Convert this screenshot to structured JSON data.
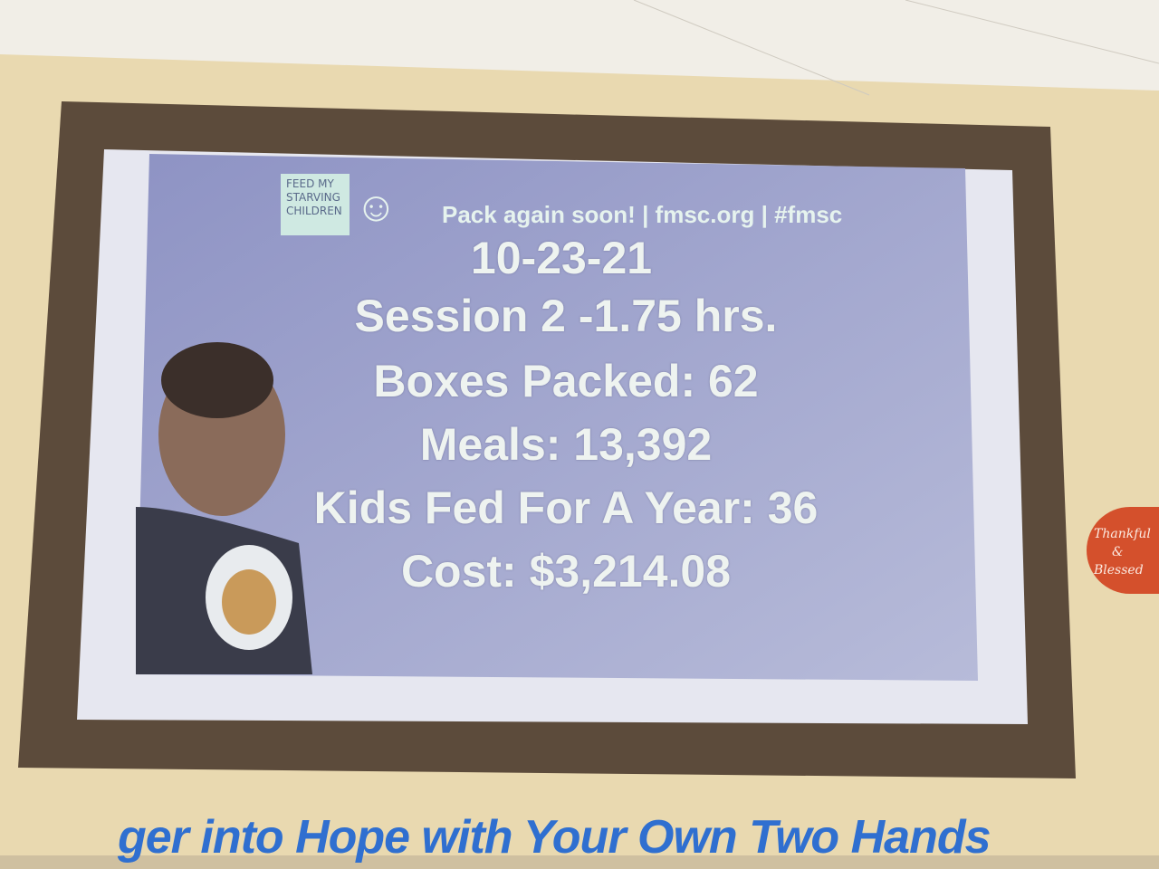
{
  "slide": {
    "logo_text": [
      "FEED MY",
      "STARVING",
      "CHILDREN"
    ],
    "tagline": "Pack again soon! | fmsc.org | #fmsc",
    "lines": [
      "10-23-21",
      "Session 2 -1.75 hrs.",
      "Boxes Packed: 62",
      "Meals: 13,392",
      "Kids Fed For A Year: 36",
      "Cost: $3,214.08"
    ]
  },
  "wall": {
    "slogan": "ger into Hope with Your Own Two Hands",
    "sign_line1": "Thankful",
    "sign_line2": "&",
    "sign_line3": "Blessed"
  },
  "colors": {
    "wall": "#e9d9b0",
    "frame": "#5a4a3a",
    "slide": "#a3a7cf",
    "slogan": "#2f6fd0"
  }
}
